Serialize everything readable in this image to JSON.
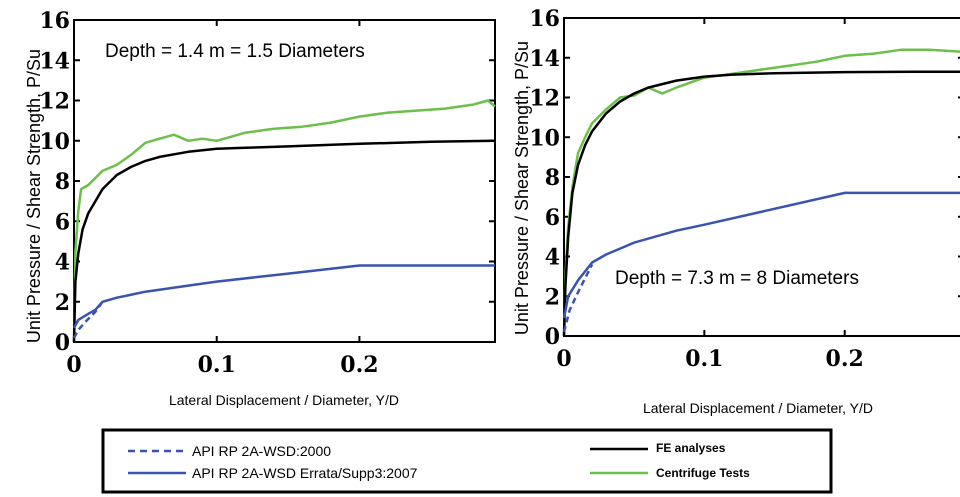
{
  "colors": {
    "fe": "#000000",
    "centrifuge": "#6dbf4b",
    "api2000": "#3a53b0",
    "api2007": "#3a53b0"
  },
  "legend": {
    "items": [
      {
        "key": "api2000",
        "label": "API RP 2A-WSD:2000"
      },
      {
        "key": "api2007",
        "label": "API RP 2A-WSD Errata/Supp3:2007"
      },
      {
        "key": "fe",
        "label": "FE analyses"
      },
      {
        "key": "centrifuge",
        "label": "Centrifuge Tests"
      }
    ]
  },
  "chart_data": [
    {
      "type": "line",
      "annotation": "Depth = 1.4 m = 1.5 Diameters",
      "xlabel": "Lateral Displacement / Diameter, Y/D",
      "ylabel": "Unit Pressure / Shear Strength, P/Su",
      "xlim": [
        0,
        0.295
      ],
      "ylim": [
        0,
        16
      ],
      "xticks": [
        0,
        0.1,
        0.2
      ],
      "xtick_labels": [
        "0",
        "0.1",
        "0.2"
      ],
      "yticks": [
        0,
        2,
        4,
        6,
        8,
        10,
        12,
        14,
        16
      ],
      "series": [
        {
          "key": "centrifuge",
          "name": "Centrifuge Tests",
          "x": [
            0,
            0.001,
            0.003,
            0.005,
            0.01,
            0.02,
            0.03,
            0.04,
            0.05,
            0.06,
            0.07,
            0.08,
            0.09,
            0.1,
            0.12,
            0.14,
            0.16,
            0.18,
            0.2,
            0.22,
            0.24,
            0.26,
            0.28,
            0.29,
            0.295
          ],
          "y": [
            0,
            4.5,
            6.5,
            7.6,
            7.8,
            8.5,
            8.8,
            9.3,
            9.9,
            10.1,
            10.3,
            10.0,
            10.1,
            10.0,
            10.4,
            10.6,
            10.7,
            10.9,
            11.2,
            11.4,
            11.5,
            11.6,
            11.8,
            12.0,
            11.7
          ]
        },
        {
          "key": "fe",
          "name": "FE analyses",
          "x": [
            0,
            0.001,
            0.003,
            0.006,
            0.01,
            0.02,
            0.03,
            0.04,
            0.05,
            0.06,
            0.08,
            0.1,
            0.12,
            0.15,
            0.2,
            0.25,
            0.295
          ],
          "y": [
            0,
            3.0,
            4.4,
            5.6,
            6.4,
            7.6,
            8.3,
            8.7,
            9.0,
            9.2,
            9.45,
            9.6,
            9.65,
            9.72,
            9.85,
            9.95,
            10.0
          ]
        },
        {
          "key": "api2007",
          "name": "API RP 2A-WSD Errata/Supp3:2007",
          "x": [
            0,
            0.003,
            0.01,
            0.015,
            0.02,
            0.03,
            0.05,
            0.08,
            0.1,
            0.15,
            0.2,
            0.295
          ],
          "y": [
            0.7,
            1.1,
            1.4,
            1.6,
            2.0,
            2.2,
            2.5,
            2.8,
            3.0,
            3.4,
            3.8,
            3.8
          ]
        },
        {
          "key": "api2000",
          "name": "API RP 2A-WSD:2000",
          "x": [
            0,
            0.003,
            0.008,
            0.015,
            0.02
          ],
          "y": [
            0.2,
            0.6,
            1.0,
            1.5,
            2.0
          ]
        }
      ]
    },
    {
      "type": "line",
      "annotation": "Depth = 7.3 m = 8 Diameters",
      "xlabel": "Lateral Displacement / Diameter, Y/D",
      "ylabel": "Unit Pressure / Shear Strength, P/Su",
      "xlim": [
        0,
        0.285
      ],
      "ylim": [
        0,
        16
      ],
      "xticks": [
        0,
        0.1,
        0.2
      ],
      "xtick_labels": [
        "0",
        "0.1",
        "0.2"
      ],
      "yticks": [
        0,
        2,
        4,
        6,
        8,
        10,
        12,
        14,
        16
      ],
      "series": [
        {
          "key": "centrifuge",
          "name": "Centrifuge Tests",
          "x": [
            0,
            0.001,
            0.003,
            0.006,
            0.01,
            0.015,
            0.02,
            0.03,
            0.04,
            0.05,
            0.06,
            0.07,
            0.08,
            0.1,
            0.12,
            0.14,
            0.16,
            0.18,
            0.2,
            0.22,
            0.24,
            0.26,
            0.285
          ],
          "y": [
            0,
            3.0,
            5.5,
            7.5,
            9.2,
            10.0,
            10.7,
            11.4,
            12.0,
            12.1,
            12.5,
            12.2,
            12.5,
            13.0,
            13.2,
            13.4,
            13.6,
            13.8,
            14.1,
            14.2,
            14.4,
            14.4,
            14.3
          ]
        },
        {
          "key": "fe",
          "name": "FE analyses",
          "x": [
            0,
            0.001,
            0.003,
            0.006,
            0.01,
            0.015,
            0.02,
            0.03,
            0.04,
            0.05,
            0.06,
            0.08,
            0.1,
            0.12,
            0.15,
            0.2,
            0.25,
            0.285
          ],
          "y": [
            0,
            2.5,
            5.0,
            7.2,
            8.6,
            9.6,
            10.3,
            11.2,
            11.8,
            12.2,
            12.5,
            12.85,
            13.05,
            13.15,
            13.22,
            13.28,
            13.3,
            13.3
          ]
        },
        {
          "key": "api2007",
          "name": "API RP 2A-WSD Errata/Supp3:2007",
          "x": [
            0,
            0.003,
            0.01,
            0.02,
            0.03,
            0.05,
            0.08,
            0.1,
            0.15,
            0.2,
            0.285
          ],
          "y": [
            0.9,
            2.0,
            2.8,
            3.7,
            4.1,
            4.7,
            5.3,
            5.6,
            6.4,
            7.2,
            7.2
          ]
        },
        {
          "key": "api2000",
          "name": "API RP 2A-WSD:2000",
          "x": [
            0,
            0.004,
            0.01,
            0.02
          ],
          "y": [
            0.2,
            1.3,
            2.2,
            3.6
          ]
        }
      ]
    }
  ]
}
